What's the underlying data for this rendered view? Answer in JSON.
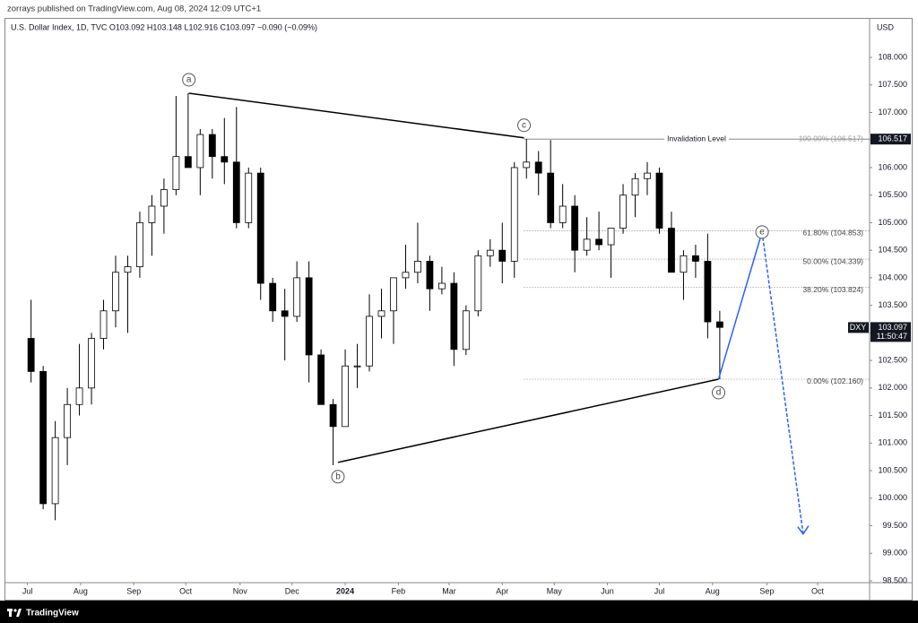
{
  "header": {
    "publisher": "zorrays published on TradingView.com, Aug 08, 2024 12:09 UTC+1",
    "legend": "U.S. Dollar Index, 1D, TVC  O103.092  H103.148  L102.916  C103.097  −0.090 (−0.09%)",
    "currency": "USD"
  },
  "footer": {
    "brand": "TradingView"
  },
  "chart_data": {
    "type": "candlestick",
    "symbol": "DXY",
    "last_price": {
      "value": 103.097,
      "label": "103.097"
    },
    "countdown": "11:50:47",
    "x": [
      0,
      1,
      2,
      3,
      4,
      5,
      6,
      7,
      8,
      9,
      10,
      11,
      12,
      13,
      14,
      15,
      16,
      17,
      18,
      19,
      20,
      21,
      22,
      23,
      24,
      25,
      26,
      27,
      28,
      29,
      30,
      31,
      32,
      33,
      34,
      35,
      36,
      37,
      38,
      39,
      40,
      41,
      42,
      43,
      44,
      45,
      46,
      47,
      48,
      49,
      50,
      51,
      52,
      53,
      54,
      55,
      56,
      57
    ],
    "open": [
      102.9,
      102.3,
      99.9,
      101.1,
      101.7,
      102.0,
      102.9,
      103.4,
      104.1,
      104.2,
      105.0,
      105.3,
      105.6,
      106.2,
      106.0,
      106.6,
      106.2,
      106.1,
      105.0,
      105.9,
      103.9,
      103.4,
      103.3,
      104.0,
      102.6,
      101.7,
      101.3,
      102.4,
      102.4,
      103.3,
      103.4,
      104.0,
      104.1,
      104.3,
      103.8,
      103.9,
      102.7,
      103.4,
      104.4,
      104.5,
      104.3,
      106.0,
      106.1,
      105.9,
      105.0,
      105.3,
      104.5,
      104.7,
      104.6,
      104.9,
      105.5,
      105.8,
      105.9,
      104.9,
      104.1,
      104.4,
      104.3,
      103.2
    ],
    "high": [
      103.6,
      102.4,
      101.4,
      102.0,
      102.8,
      103.0,
      103.6,
      104.4,
      104.4,
      105.2,
      105.5,
      105.8,
      107.3,
      107.35,
      106.7,
      106.7,
      106.9,
      107.1,
      106.0,
      106.0,
      104.0,
      103.8,
      104.3,
      104.3,
      102.7,
      101.8,
      102.7,
      102.8,
      103.7,
      103.8,
      104.0,
      104.6,
      105.0,
      104.4,
      104.2,
      104.1,
      103.5,
      104.5,
      104.7,
      105.0,
      106.1,
      106.52,
      106.3,
      106.5,
      105.7,
      105.5,
      105.1,
      105.2,
      104.9,
      105.7,
      105.9,
      106.1,
      106.0,
      105.2,
      104.5,
      104.6,
      104.8,
      103.4
    ],
    "low": [
      102.1,
      99.8,
      99.6,
      100.6,
      101.5,
      101.7,
      102.7,
      103.1,
      103.0,
      104.0,
      104.4,
      104.8,
      105.5,
      106.0,
      105.5,
      105.8,
      105.7,
      104.9,
      104.9,
      103.6,
      103.2,
      102.5,
      103.2,
      102.1,
      101.8,
      100.6,
      101.3,
      102.0,
      102.3,
      102.9,
      102.8,
      103.8,
      103.9,
      103.4,
      103.7,
      102.4,
      102.6,
      103.3,
      104.2,
      103.9,
      104.0,
      105.8,
      105.5,
      104.9,
      104.9,
      104.1,
      104.4,
      104.5,
      104.0,
      104.8,
      105.1,
      105.5,
      104.8,
      104.1,
      103.6,
      104.0,
      102.9,
      102.16
    ],
    "close": [
      102.3,
      99.9,
      101.1,
      101.7,
      102.0,
      102.9,
      103.4,
      104.1,
      104.2,
      105.0,
      105.3,
      105.6,
      106.2,
      106.0,
      106.6,
      106.2,
      106.1,
      105.0,
      105.9,
      103.9,
      103.4,
      103.3,
      104.0,
      102.6,
      101.7,
      101.3,
      102.4,
      102.4,
      103.3,
      103.4,
      104.0,
      104.1,
      104.3,
      103.8,
      103.9,
      102.7,
      103.4,
      104.4,
      104.5,
      104.3,
      106.0,
      106.1,
      105.9,
      105.0,
      105.3,
      104.5,
      104.7,
      104.6,
      104.9,
      105.5,
      105.8,
      105.9,
      104.9,
      104.1,
      104.4,
      104.3,
      103.2,
      103.1
    ],
    "xlim": [
      -2.2,
      69.4
    ],
    "ylim": [
      98.467,
      108.716
    ],
    "xticks": [
      {
        "value": -0.3,
        "label": "Jul"
      },
      {
        "value": 4.1,
        "label": "Aug"
      },
      {
        "value": 8.5,
        "label": "Sep"
      },
      {
        "value": 12.8,
        "label": "Oct"
      },
      {
        "value": 17.3,
        "label": "Nov"
      },
      {
        "value": 21.6,
        "label": "Dec"
      },
      {
        "value": 26.0,
        "label": "2024"
      },
      {
        "value": 30.4,
        "label": "Feb"
      },
      {
        "value": 34.6,
        "label": "Mar"
      },
      {
        "value": 39.0,
        "label": "Apr"
      },
      {
        "value": 43.3,
        "label": "May"
      },
      {
        "value": 47.7,
        "label": "Jun"
      },
      {
        "value": 52.0,
        "label": "Jul"
      },
      {
        "value": 56.4,
        "label": "Aug"
      },
      {
        "value": 60.9,
        "label": "Sep"
      },
      {
        "value": 65.1,
        "label": "Oct"
      }
    ],
    "yticks": [
      {
        "value": 108,
        "label": "108.000"
      },
      {
        "value": 107.5,
        "label": "107.500"
      },
      {
        "value": 107,
        "label": "107.000"
      },
      {
        "value": 106.5,
        "label": "106.500"
      },
      {
        "value": 106,
        "label": "106.000"
      },
      {
        "value": 105.5,
        "label": "105.500"
      },
      {
        "value": 105,
        "label": "105.000"
      },
      {
        "value": 104.5,
        "label": "104.500"
      },
      {
        "value": 104,
        "label": "104.000"
      },
      {
        "value": 103.5,
        "label": "103.500"
      },
      {
        "value": 103,
        "label": "103.000"
      },
      {
        "value": 102.5,
        "label": "102.500"
      },
      {
        "value": 102,
        "label": "102.000"
      },
      {
        "value": 101.5,
        "label": "101.500"
      },
      {
        "value": 101,
        "label": "101.000"
      },
      {
        "value": 100.5,
        "label": "100.500"
      },
      {
        "value": 100,
        "label": "100.000"
      },
      {
        "value": 99.5,
        "label": "99.500"
      },
      {
        "value": 99,
        "label": "99.000"
      },
      {
        "value": 98.5,
        "label": "98.500"
      }
    ],
    "grid": false,
    "waves": [
      {
        "label": "a",
        "x": 13.06,
        "y": 107.35
      },
      {
        "label": "b",
        "x": 25.4,
        "y": 100.65
      },
      {
        "label": "c",
        "x": 40.8,
        "y": 106.54
      },
      {
        "label": "d",
        "x": 56.9,
        "y": 102.16
      },
      {
        "label": "e",
        "x": 60.5,
        "y": 104.83
      }
    ],
    "projection_end": {
      "x": 63.9,
      "y": 99.35
    },
    "projection_color": "#2962ff",
    "invalidation": {
      "text": "Invalidation Level",
      "value": 106.517,
      "label": "106.517"
    },
    "fib_start": 40.8,
    "fib_levels": [
      {
        "value": 106.517,
        "label": "100.00% (106.517)"
      },
      {
        "value": 104.853,
        "label": "61.80% (104.853)"
      },
      {
        "value": 104.339,
        "label": "50.00% (104.339)"
      },
      {
        "value": 103.824,
        "label": "38.20% (103.824)"
      },
      {
        "value": 102.16,
        "label": "0.00% (102.160)"
      }
    ]
  }
}
